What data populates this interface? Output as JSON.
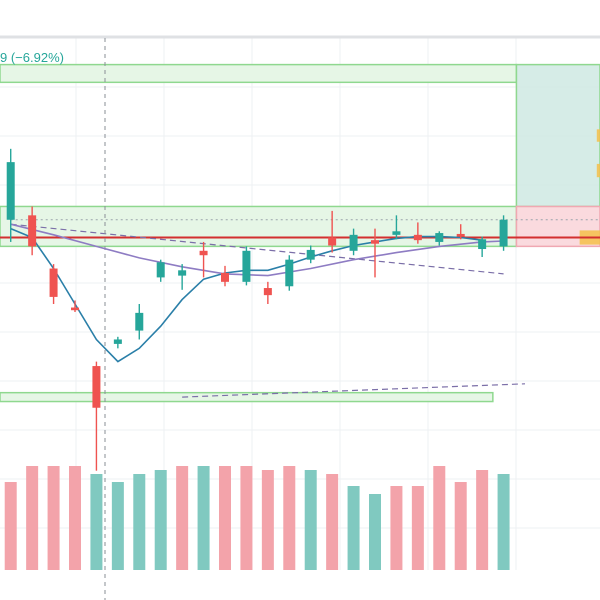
{
  "header": {
    "change_text": "9 (−6.92%)"
  },
  "colors": {
    "up": "#26a69a",
    "down": "#ef5350",
    "up_volume": "#80c9c0",
    "down_volume": "#f3a3aa",
    "target_fill": "#cfe9e3",
    "stop_fill": "#f9d3d8",
    "zone_fill": "#e3f5e3",
    "zone_border": "#8fd88f",
    "support_line": "#d32f2f",
    "highlight": "#f5c04a",
    "ma_fast": "#2a7fa8",
    "ma_slow": "#8e7cc3",
    "grid": "#eef0f3",
    "frame": "#dfe1e4"
  },
  "chart_data": {
    "type": "candlestick",
    "title": "",
    "grid": true,
    "ylim": [
      0,
      60
    ],
    "xlim": [
      -0.5,
      27.5
    ],
    "candles": [
      {
        "o": 39.5,
        "h": 47.5,
        "l": 37.0,
        "c": 46.0
      },
      {
        "o": 40.0,
        "h": 41.0,
        "l": 35.5,
        "c": 36.5
      },
      {
        "o": 34.0,
        "h": 34.5,
        "l": 30.0,
        "c": 30.8
      },
      {
        "o": 29.6,
        "h": 30.4,
        "l": 29.1,
        "c": 29.3
      },
      {
        "o": 23.0,
        "h": 23.5,
        "l": 11.2,
        "c": 18.3
      },
      {
        "o": 25.5,
        "h": 26.3,
        "l": 25.0,
        "c": 26.0
      },
      {
        "o": 27.0,
        "h": 30.0,
        "l": 26.0,
        "c": 29.0
      },
      {
        "o": 33.0,
        "h": 35.0,
        "l": 32.5,
        "c": 34.7
      },
      {
        "o": 33.2,
        "h": 34.5,
        "l": 31.6,
        "c": 33.8
      },
      {
        "o": 36.0,
        "h": 37.0,
        "l": 33.0,
        "c": 35.5
      },
      {
        "o": 33.5,
        "h": 34.3,
        "l": 32.0,
        "c": 32.5
      },
      {
        "o": 32.5,
        "h": 36.5,
        "l": 32.1,
        "c": 36.0
      },
      {
        "o": 31.8,
        "h": 32.5,
        "l": 30.0,
        "c": 31.0
      },
      {
        "o": 32.0,
        "h": 35.5,
        "l": 31.5,
        "c": 35.0
      },
      {
        "o": 35.0,
        "h": 36.6,
        "l": 34.6,
        "c": 36.1
      },
      {
        "o": 37.5,
        "h": 40.5,
        "l": 35.8,
        "c": 36.6
      },
      {
        "o": 36.0,
        "h": 38.5,
        "l": 35.5,
        "c": 37.8
      },
      {
        "o": 37.2,
        "h": 38.5,
        "l": 33.0,
        "c": 36.8
      },
      {
        "o": 37.8,
        "h": 40.0,
        "l": 37.3,
        "c": 38.2
      },
      {
        "o": 37.8,
        "h": 39.2,
        "l": 36.8,
        "c": 37.2
      },
      {
        "o": 37.0,
        "h": 38.2,
        "l": 36.6,
        "c": 38.0
      },
      {
        "o": 37.9,
        "h": 39.0,
        "l": 37.3,
        "c": 37.6
      },
      {
        "o": 36.2,
        "h": 37.6,
        "l": 35.3,
        "c": 37.3
      },
      {
        "o": 36.5,
        "h": 40.0,
        "l": 36.0,
        "c": 39.5
      }
    ],
    "volumes": [
      {
        "v": 22,
        "up": false
      },
      {
        "v": 26,
        "up": false
      },
      {
        "v": 26,
        "up": false
      },
      {
        "v": 26,
        "up": false
      },
      {
        "v": 24,
        "up": true
      },
      {
        "v": 22,
        "up": true
      },
      {
        "v": 24,
        "up": true
      },
      {
        "v": 25,
        "up": true
      },
      {
        "v": 26,
        "up": false
      },
      {
        "v": 26,
        "up": true
      },
      {
        "v": 26,
        "up": false
      },
      {
        "v": 26,
        "up": false
      },
      {
        "v": 25,
        "up": false
      },
      {
        "v": 26,
        "up": false
      },
      {
        "v": 25,
        "up": true
      },
      {
        "v": 24,
        "up": false
      },
      {
        "v": 21,
        "up": true
      },
      {
        "v": 19,
        "up": true
      },
      {
        "v": 21,
        "up": false
      },
      {
        "v": 21,
        "up": false
      },
      {
        "v": 26,
        "up": false
      },
      {
        "v": 22,
        "up": false
      },
      {
        "v": 25,
        "up": false
      },
      {
        "v": 24,
        "up": true
      }
    ],
    "moving_averages": [
      {
        "color": "ma_fast",
        "points": [
          [
            0,
            38.5
          ],
          [
            1,
            37.5
          ],
          [
            2,
            34.0
          ],
          [
            3,
            30.0
          ],
          [
            4,
            26.0
          ],
          [
            5,
            23.5
          ],
          [
            6,
            25.0
          ],
          [
            7,
            27.5
          ],
          [
            8,
            30.5
          ],
          [
            9,
            32.8
          ],
          [
            10,
            33.5
          ],
          [
            11,
            33.8
          ],
          [
            12,
            33.8
          ],
          [
            13,
            34.5
          ],
          [
            14,
            35.3
          ],
          [
            15,
            36.0
          ],
          [
            16,
            36.6
          ],
          [
            17,
            37.0
          ],
          [
            18,
            37.4
          ],
          [
            19,
            37.6
          ],
          [
            20,
            37.6
          ],
          [
            21,
            37.5
          ],
          [
            22,
            37.2
          ]
        ]
      },
      {
        "color": "ma_slow",
        "points": [
          [
            0,
            39.0
          ],
          [
            2,
            37.8
          ],
          [
            4,
            36.5
          ],
          [
            6,
            35.2
          ],
          [
            8,
            34.2
          ],
          [
            10,
            33.4
          ],
          [
            12,
            33.2
          ],
          [
            14,
            34.0
          ],
          [
            16,
            35.0
          ],
          [
            18,
            35.8
          ],
          [
            20,
            36.5
          ],
          [
            22,
            37.0
          ],
          [
            23,
            37.1
          ]
        ]
      }
    ],
    "dashed_trendlines": [
      {
        "from": [
          0,
          39.0
        ],
        "to": [
          23,
          33.4
        ]
      },
      {
        "from": [
          8,
          19.5
        ],
        "to": [
          24,
          21.0
        ]
      }
    ],
    "zones": [
      {
        "kind": "zone",
        "x0": -0.5,
        "x1": 23.6,
        "y0": 55.0,
        "y1": 57.0
      },
      {
        "kind": "zone",
        "x0": -0.5,
        "x1": 23.6,
        "y0": 36.5,
        "y1": 41.0
      },
      {
        "kind": "zone",
        "x0": -0.5,
        "x1": 22.5,
        "y0": 19.0,
        "y1": 20.0
      },
      {
        "kind": "target",
        "x0": 23.6,
        "x1": 27.5,
        "y0": 41.0,
        "y1": 57.0
      },
      {
        "kind": "stop",
        "x0": 23.6,
        "x1": 27.5,
        "y0": 36.5,
        "y1": 41.0
      }
    ],
    "support_line": {
      "y": 37.5
    },
    "entry_dotted": {
      "y": 39.5,
      "x0": 0,
      "x1": 27.5
    },
    "highlights": [
      {
        "x0": 26.55,
        "x1": 27.5,
        "y0": 36.7,
        "y1": 38.3
      },
      {
        "x0": 27.35,
        "x1": 27.5,
        "y0": 48.3,
        "y1": 49.7
      },
      {
        "x0": 27.35,
        "x1": 27.5,
        "y0": 44.3,
        "y1": 45.8
      }
    ],
    "cursor_x": 4.4
  }
}
